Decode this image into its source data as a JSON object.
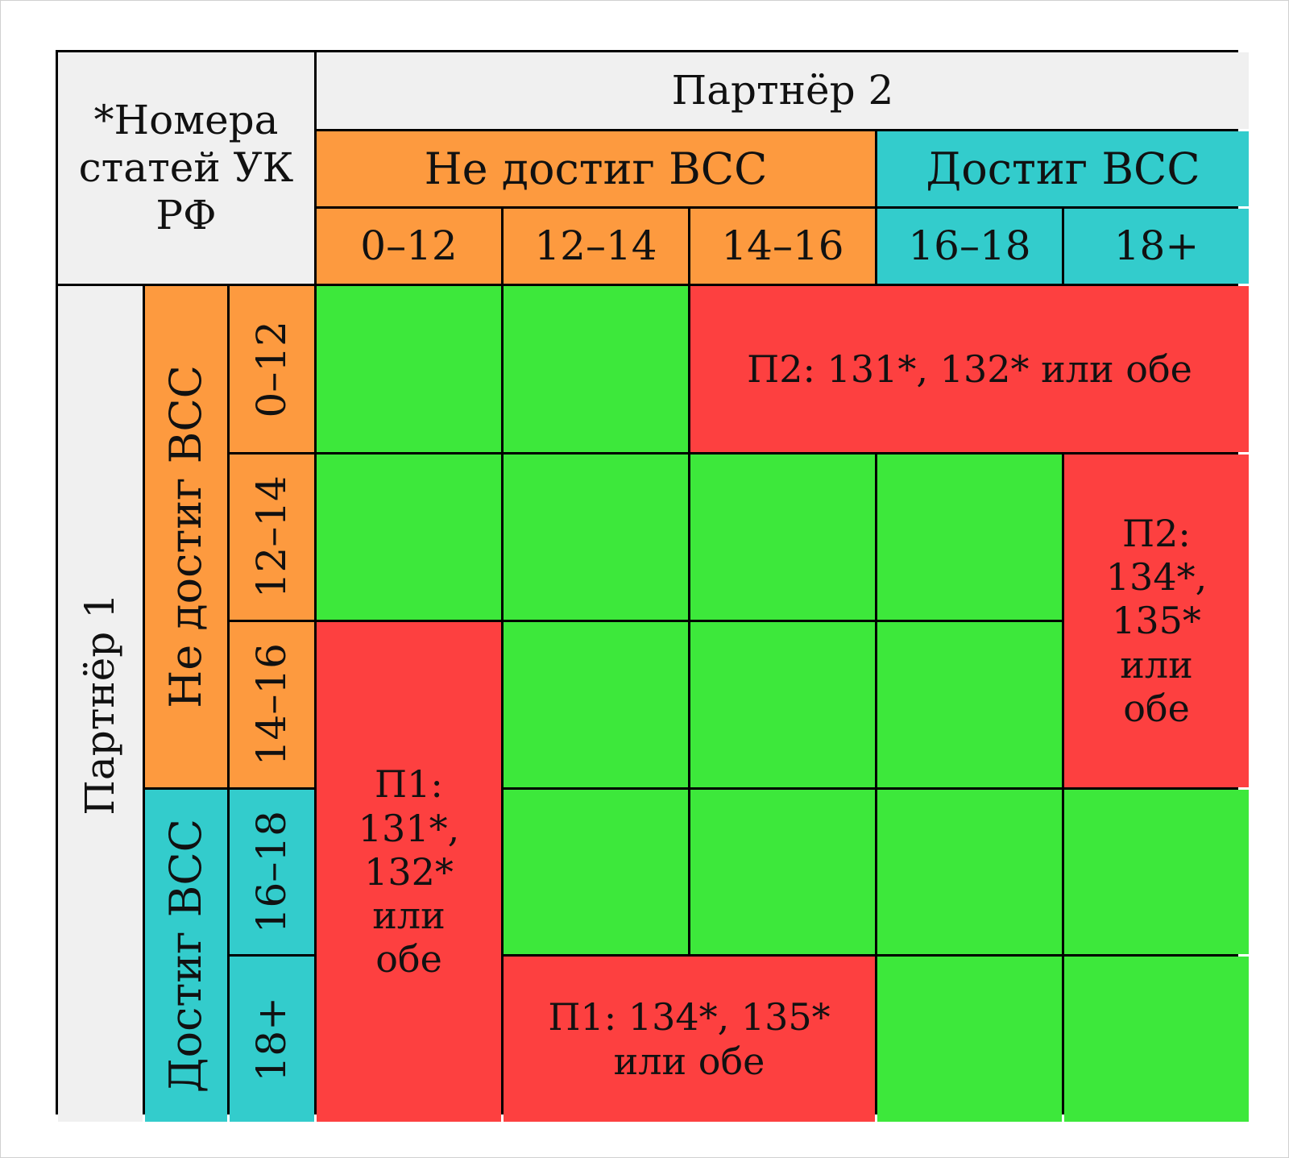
{
  "corner_note": "*Номера статей УК РФ",
  "partner2": {
    "label": "Партнёр 2",
    "groups": [
      "Не достиг ВСС",
      "Достиг ВСС"
    ],
    "ages": [
      "0–12",
      "12–14",
      "14–16",
      "16–18",
      "18+"
    ]
  },
  "partner1": {
    "label": "Партнёр 1",
    "groups": [
      "Не достиг ВСС",
      "Достиг ВСС"
    ],
    "ages": [
      "0–12",
      "12–14",
      "14–16",
      "16–18",
      "18+"
    ]
  },
  "regions": {
    "p2_top": "П2: 131*, 132* или обе",
    "p2_right": "П2: 134*, 135* или обе",
    "p1_left": "П1: 131*, 132* или обе",
    "p1_bottom": "П1: 134*, 135* или обе"
  },
  "colors": {
    "not_reached": "#fd9a3f",
    "reached": "#33cccc",
    "allowed": "#3de83b",
    "offense": "#fd4040",
    "header": "#f0f0f0"
  }
}
